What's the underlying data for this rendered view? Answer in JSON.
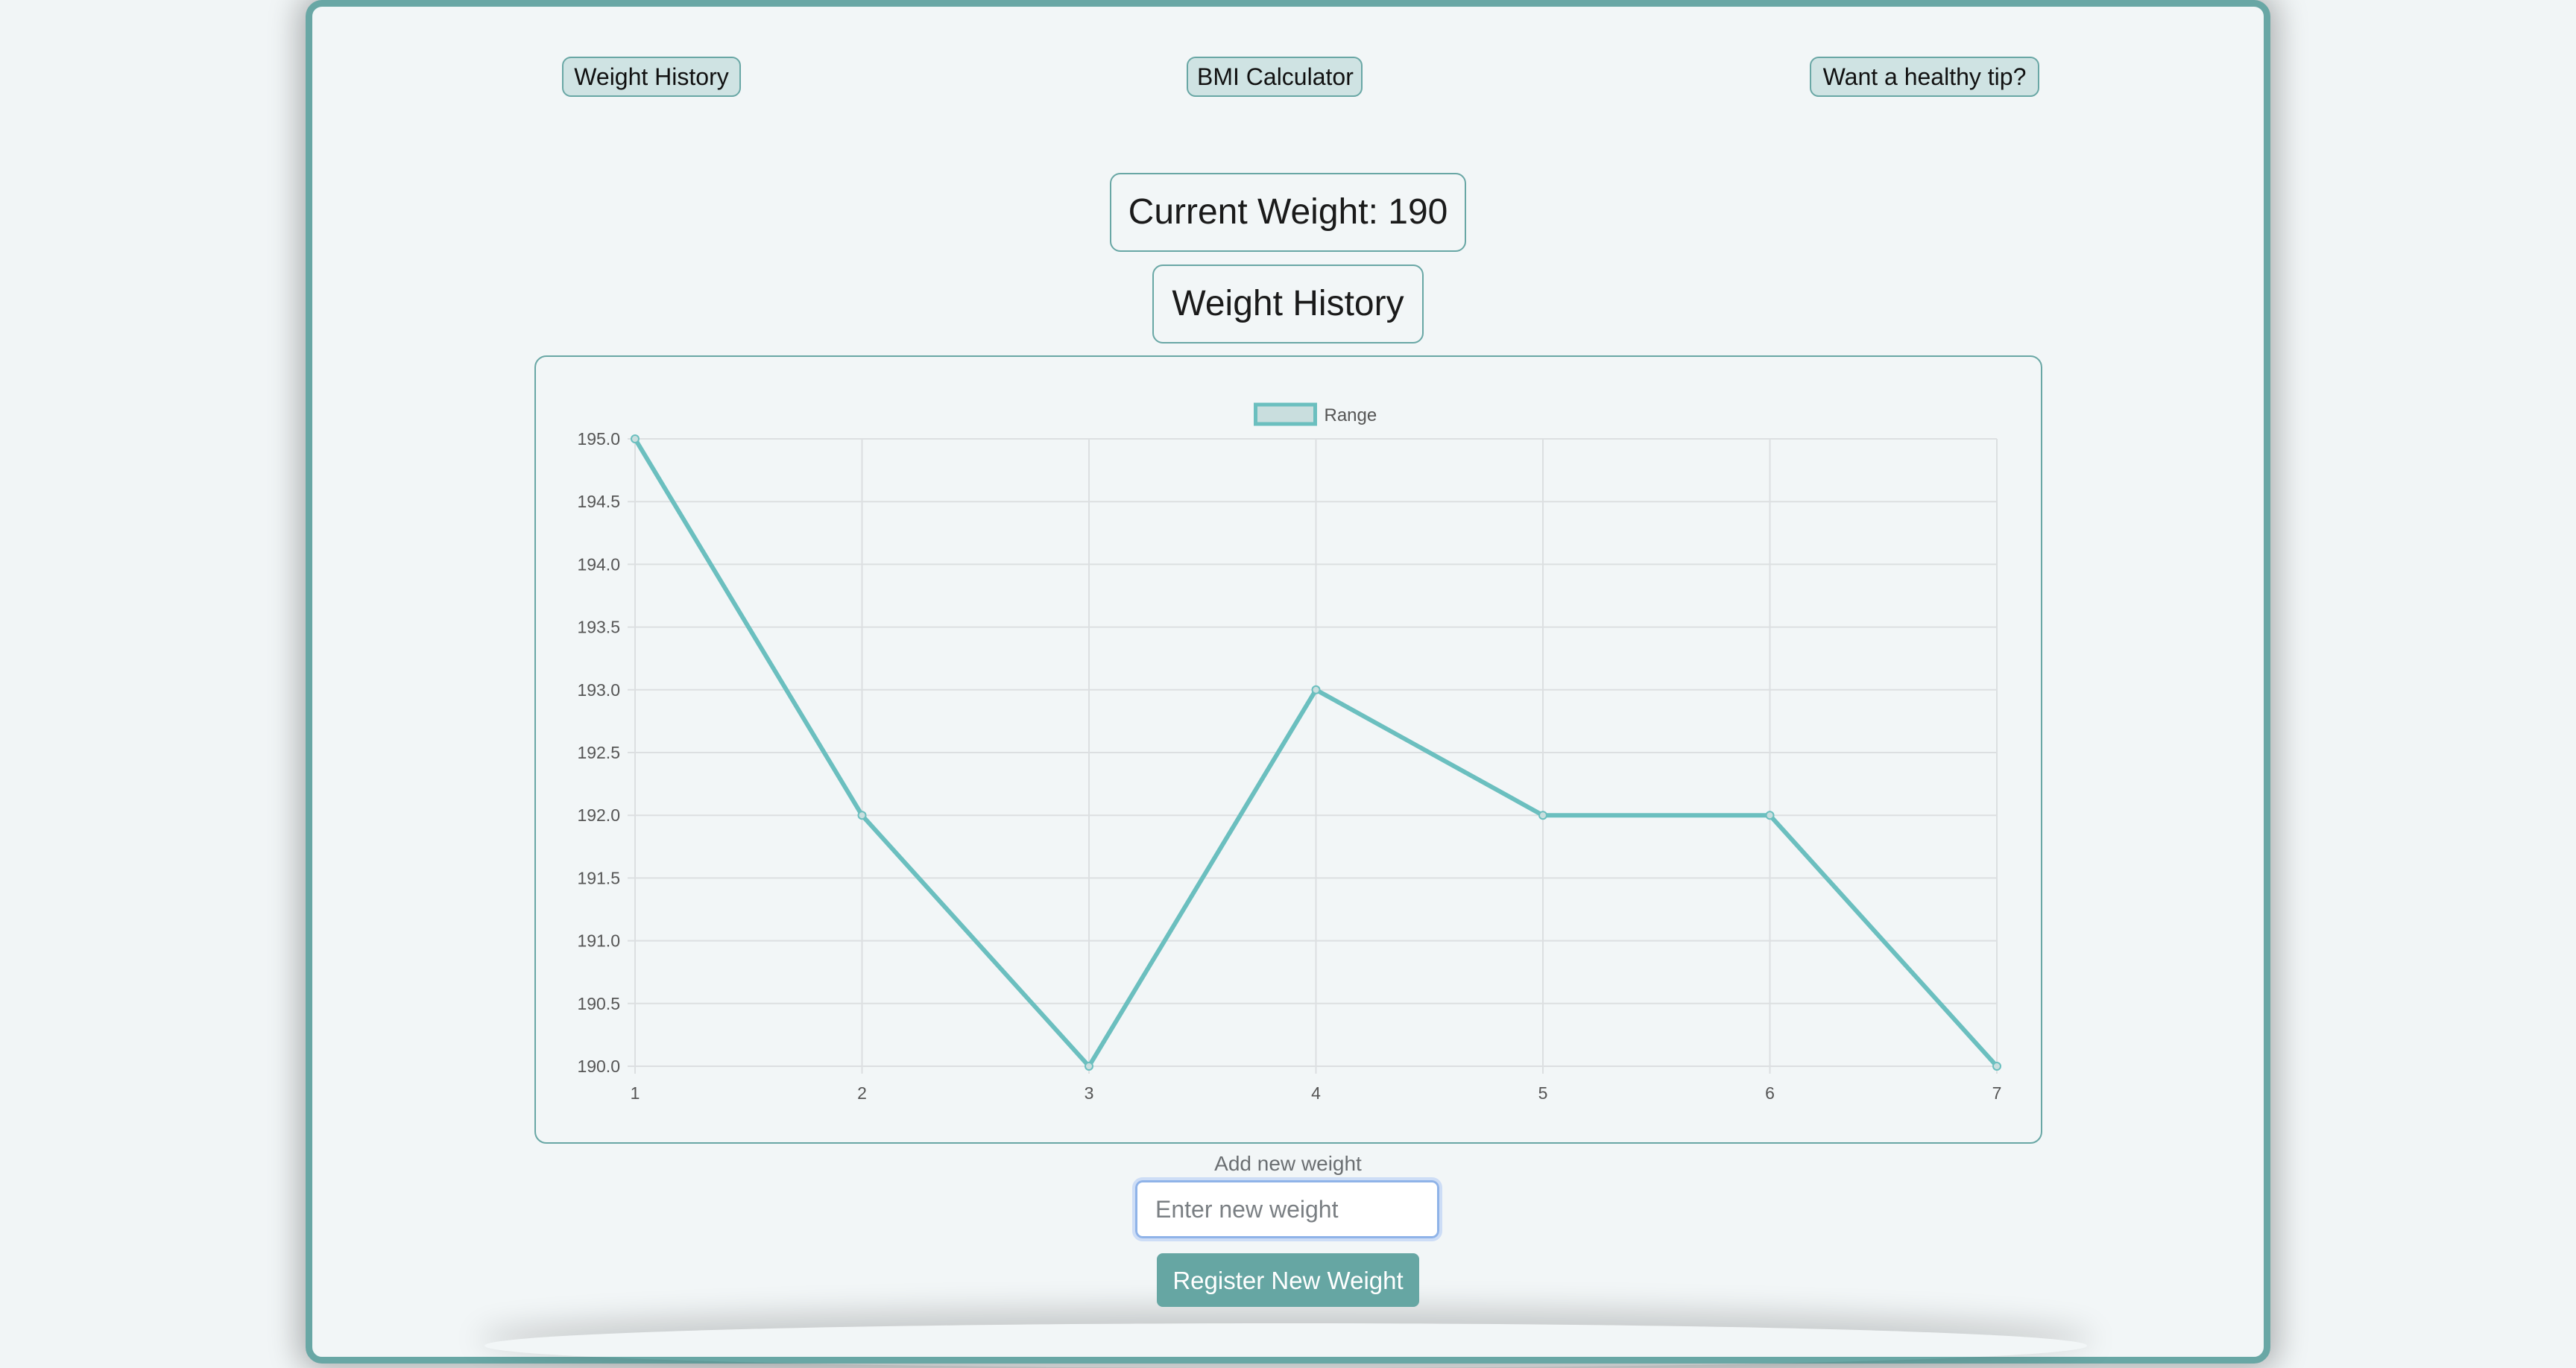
{
  "nav": {
    "weight_history": "Weight History",
    "bmi_calculator": "BMI Calculator",
    "healthy_tip": "Want a healthy tip?"
  },
  "main": {
    "current_weight": "Current Weight: 190",
    "history_title": "Weight History"
  },
  "form": {
    "label": "Add new weight",
    "placeholder": "Enter new weight",
    "submit_label": "Register New Weight"
  },
  "colors": {
    "accent": "#69a7a5",
    "line": "#6bbfbf",
    "legend_fill": "#c9dede",
    "grid": "#dcdfe1",
    "tick_text": "#555555"
  },
  "chart_data": {
    "type": "line",
    "legend": [
      "Range"
    ],
    "legend_position": "top-center",
    "x": [
      1,
      2,
      3,
      4,
      5,
      6,
      7
    ],
    "series": [
      {
        "name": "Range",
        "values": [
          195,
          192,
          190,
          193,
          192,
          192,
          190
        ]
      }
    ],
    "y_ticks": [
      "195.0",
      "194.5",
      "194.0",
      "193.5",
      "193.0",
      "192.5",
      "192.0",
      "191.5",
      "191.0",
      "190.5",
      "190.0"
    ],
    "x_ticks": [
      "1",
      "2",
      "3",
      "4",
      "5",
      "6",
      "7"
    ],
    "ylim": [
      190,
      195
    ],
    "grid": true,
    "title": "",
    "xlabel": "",
    "ylabel": ""
  }
}
